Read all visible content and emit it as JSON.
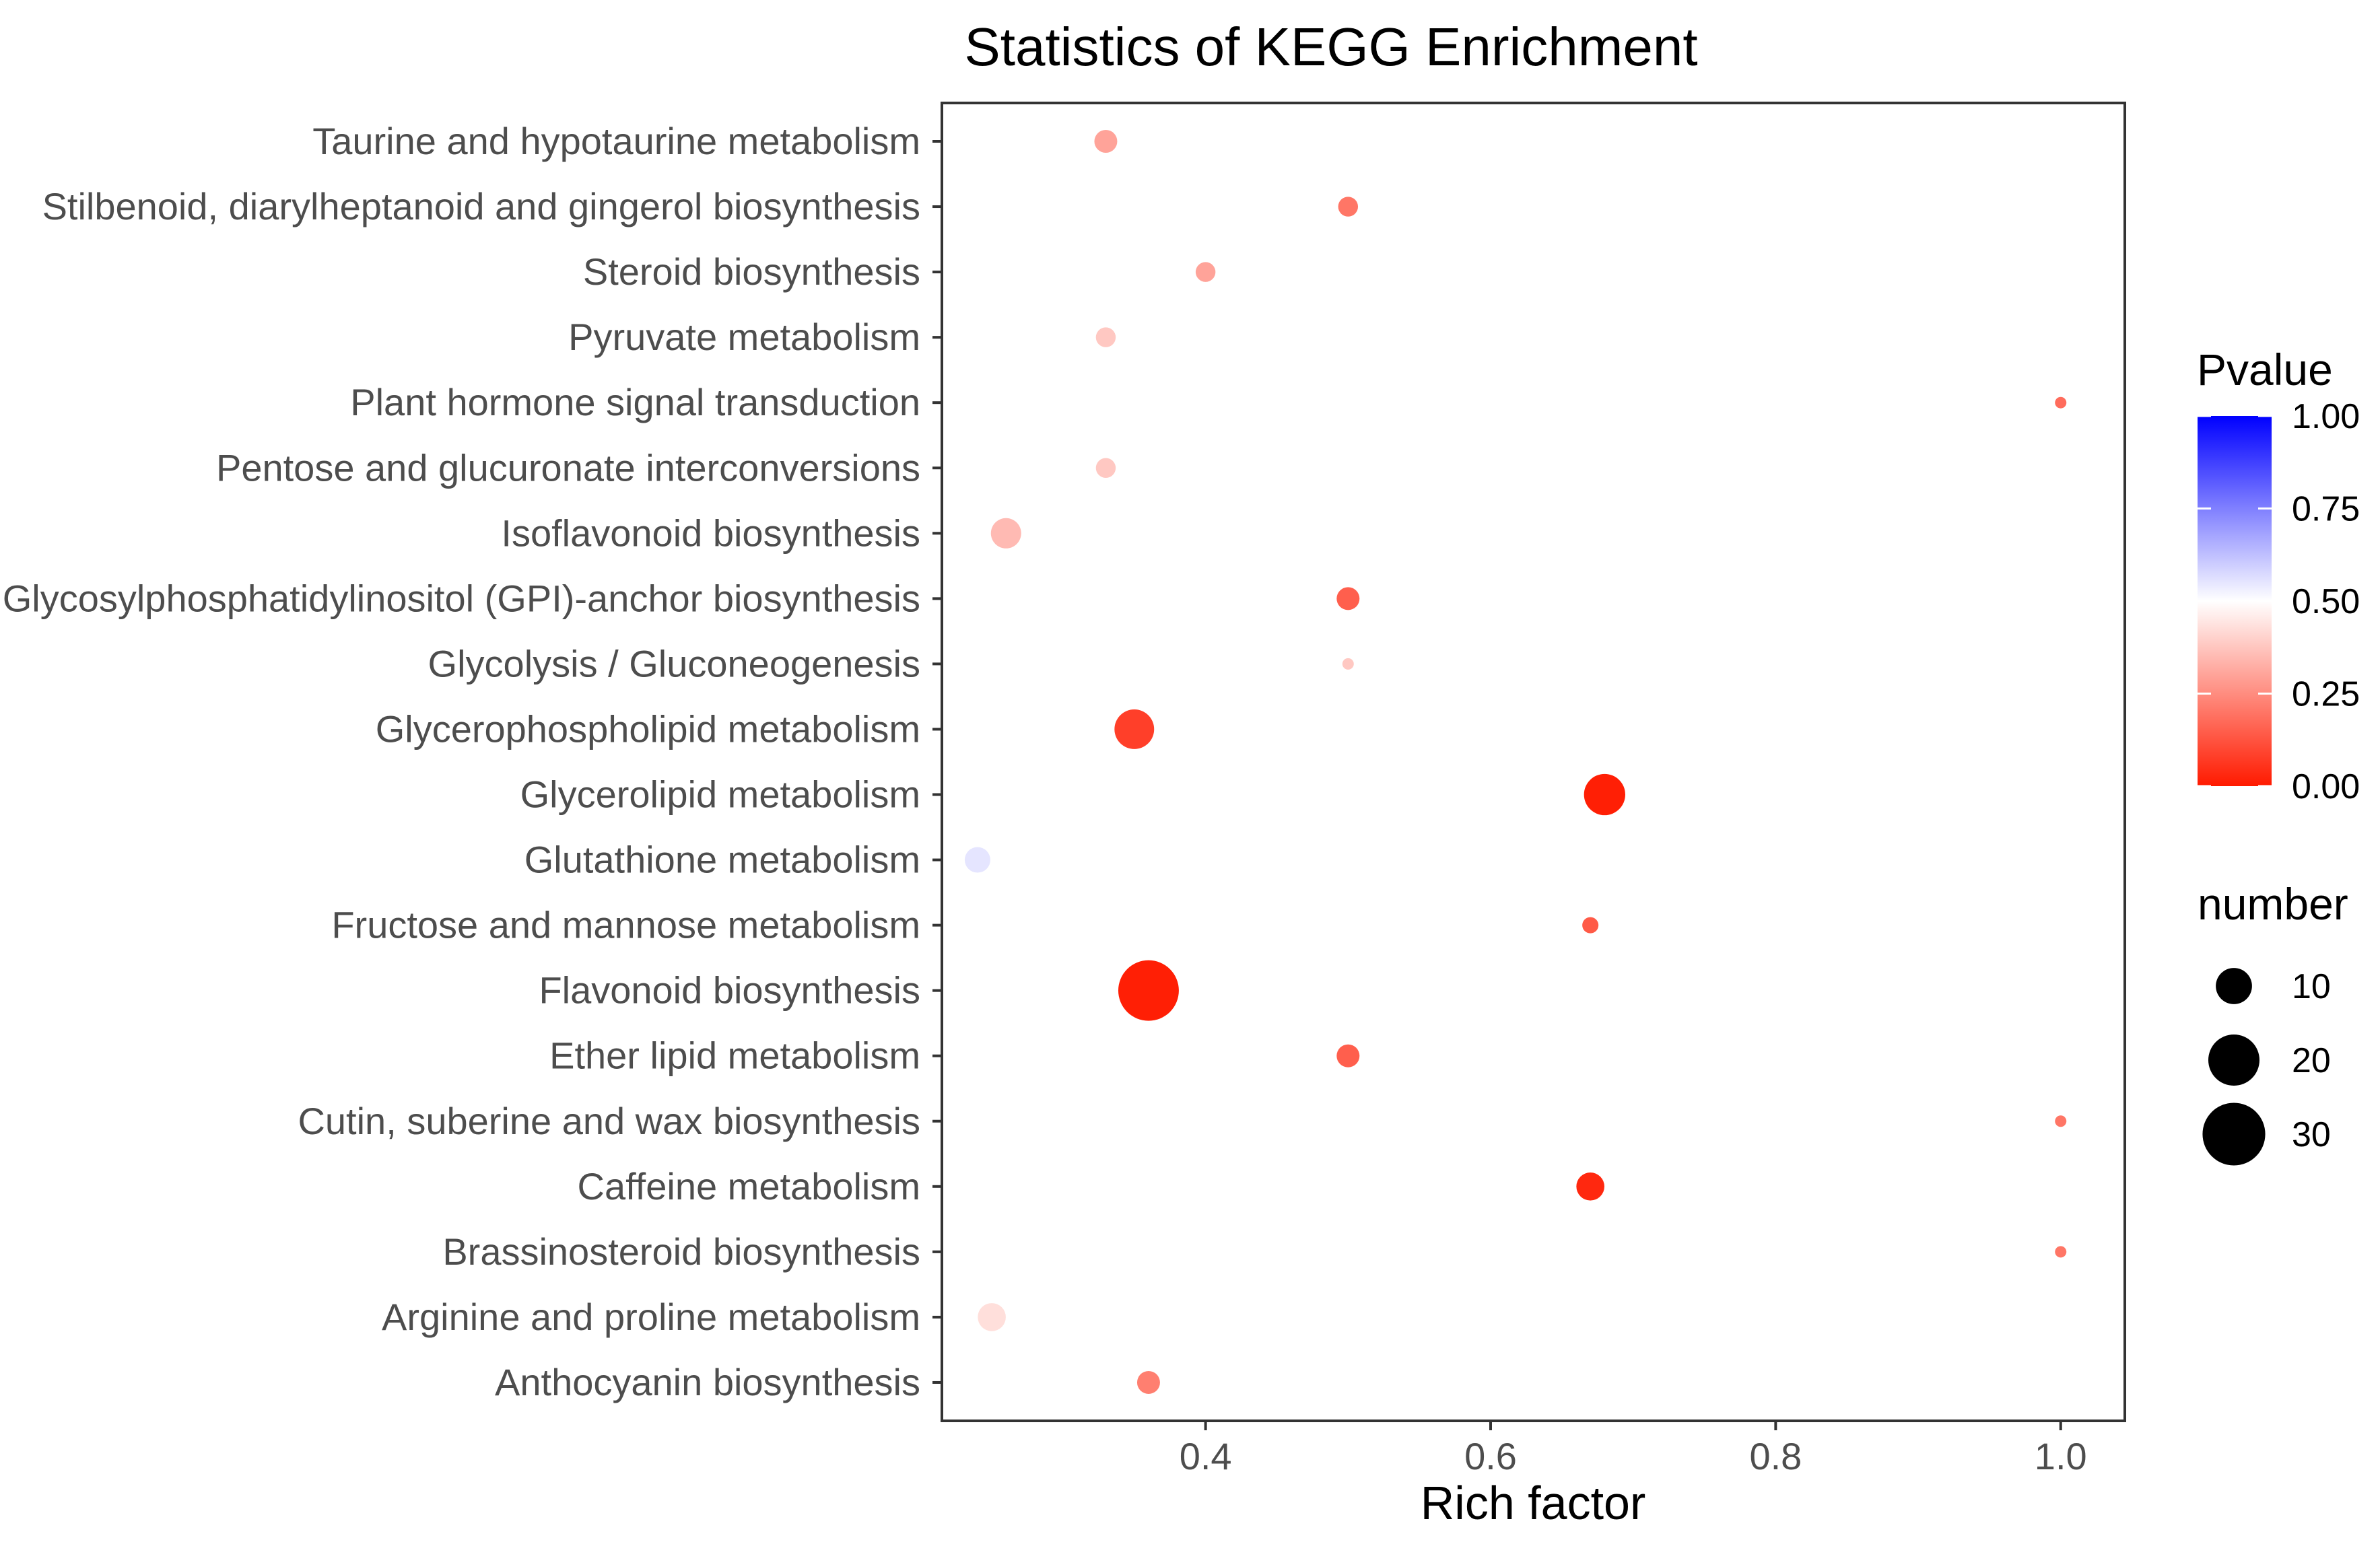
{
  "chart_data": {
    "type": "scatter",
    "title": "Statistics of KEGG Enrichment",
    "xlabel": "Rich factor",
    "ylabel": "",
    "xlim": [
      0.215,
      1.045
    ],
    "xticks": [
      0.4,
      0.6,
      0.8,
      1.0
    ],
    "xtick_labels": [
      "0.4",
      "0.6",
      "0.8",
      "1.0"
    ],
    "grid": false,
    "categories": [
      "Taurine and hypotaurine metabolism",
      "Stilbenoid, diarylheptanoid and gingerol biosynthesis",
      "Steroid biosynthesis",
      "Pyruvate metabolism",
      "Plant hormone signal transduction",
      "Pentose and glucuronate interconversions",
      "Isoflavonoid biosynthesis",
      "Glycosylphosphatidylinositol (GPI)-anchor biosynthesis",
      "Glycolysis / Gluconeogenesis",
      "Glycerophospholipid metabolism",
      "Glycerolipid metabolism",
      "Glutathione metabolism",
      "Fructose and mannose metabolism",
      "Flavonoid biosynthesis",
      "Ether lipid metabolism",
      "Cutin, suberine and wax biosynthesis",
      "Caffeine metabolism",
      "Brassinosteroid biosynthesis",
      "Arginine and proline metabolism",
      "Anthocyanin biosynthesis"
    ],
    "points": [
      {
        "category": "Taurine and hypotaurine metabolism",
        "rich_factor": 0.33,
        "number": 4,
        "pvalue": 0.3
      },
      {
        "category": "Stilbenoid, diarylheptanoid and gingerol biosynthesis",
        "rich_factor": 0.5,
        "number": 3,
        "pvalue": 0.2
      },
      {
        "category": "Steroid biosynthesis",
        "rich_factor": 0.4,
        "number": 3,
        "pvalue": 0.3
      },
      {
        "category": "Pyruvate metabolism",
        "rich_factor": 0.33,
        "number": 3,
        "pvalue": 0.38
      },
      {
        "category": "Plant hormone signal transduction",
        "rich_factor": 1.0,
        "number": 1,
        "pvalue": 0.18
      },
      {
        "category": "Pentose and glucuronate interconversions",
        "rich_factor": 0.33,
        "number": 3,
        "pvalue": 0.38
      },
      {
        "category": "Isoflavonoid biosynthesis",
        "rich_factor": 0.26,
        "number": 7,
        "pvalue": 0.35
      },
      {
        "category": "Glycosylphosphatidylinositol (GPI)-anchor biosynthesis",
        "rich_factor": 0.5,
        "number": 4,
        "pvalue": 0.15
      },
      {
        "category": "Glycolysis / Gluconeogenesis",
        "rich_factor": 0.5,
        "number": 1,
        "pvalue": 0.38
      },
      {
        "category": "Glycerophospholipid metabolism",
        "rich_factor": 0.35,
        "number": 12,
        "pvalue": 0.08
      },
      {
        "category": "Glycerolipid metabolism",
        "rich_factor": 0.68,
        "number": 13,
        "pvalue": 0.01
      },
      {
        "category": "Glutathione metabolism",
        "rich_factor": 0.24,
        "number": 5,
        "pvalue": 0.55
      },
      {
        "category": "Fructose and mannose metabolism",
        "rich_factor": 0.67,
        "number": 2,
        "pvalue": 0.14
      },
      {
        "category": "Flavonoid biosynthesis",
        "rich_factor": 0.36,
        "number": 28,
        "pvalue": 0.01
      },
      {
        "category": "Ether lipid metabolism",
        "rich_factor": 0.5,
        "number": 4,
        "pvalue": 0.15
      },
      {
        "category": "Cutin, suberine and wax biosynthesis",
        "rich_factor": 1.0,
        "number": 1,
        "pvalue": 0.2
      },
      {
        "category": "Caffeine metabolism",
        "rich_factor": 0.67,
        "number": 6,
        "pvalue": 0.03
      },
      {
        "category": "Brassinosteroid biosynthesis",
        "rich_factor": 1.0,
        "number": 1,
        "pvalue": 0.2
      },
      {
        "category": "Arginine and proline metabolism",
        "rich_factor": 0.25,
        "number": 6,
        "pvalue": 0.43
      },
      {
        "category": "Anthocyanin biosynthesis",
        "rich_factor": 0.36,
        "number": 4,
        "pvalue": 0.22
      }
    ],
    "color_legend": {
      "title": "Pvalue",
      "breaks": [
        1.0,
        0.75,
        0.5,
        0.25,
        0.0
      ],
      "labels": [
        "1.00",
        "0.75",
        "0.50",
        "0.25",
        "0.00"
      ],
      "low_color": "#ff1a00",
      "mid_color": "#ffffff",
      "high_color": "#0000ff",
      "range": [
        0,
        1
      ]
    },
    "size_legend": {
      "title": "number",
      "breaks": [
        10,
        20,
        30
      ],
      "labels": [
        "10",
        "20",
        "30"
      ]
    }
  }
}
